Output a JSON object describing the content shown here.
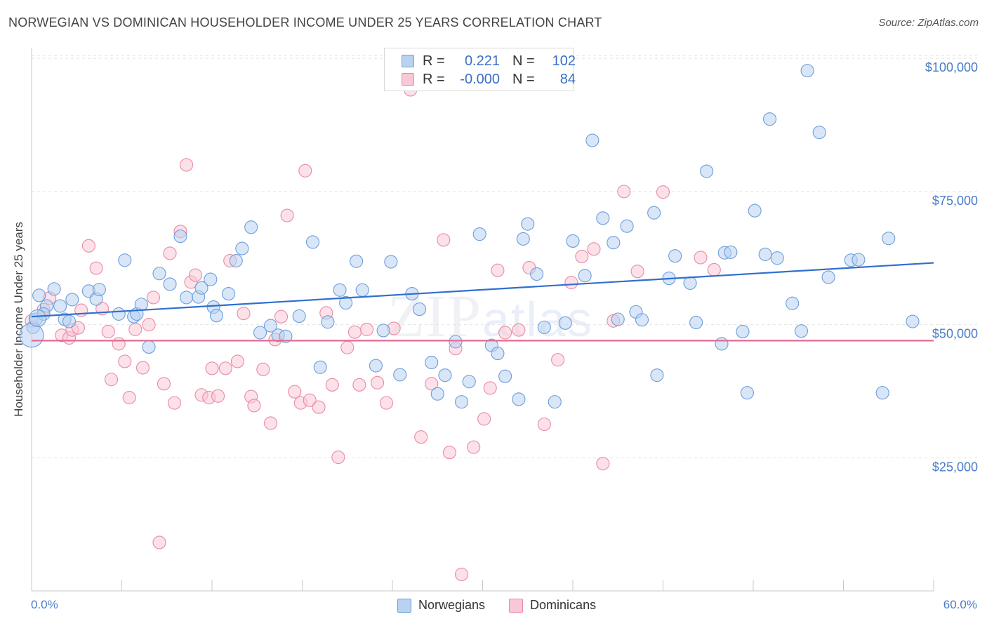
{
  "title": "NORWEGIAN VS DOMINICAN HOUSEHOLDER INCOME UNDER 25 YEARS CORRELATION CHART",
  "source": "Source: ZipAtlas.com",
  "watermark": {
    "zip": "ZIP",
    "atlas": "atlas"
  },
  "legend": {
    "rows": [
      {
        "r_label": "R =",
        "r_value": "0.221",
        "n_label": "N =",
        "n_value": "102"
      },
      {
        "r_label": "R =",
        "r_value": "-0.000",
        "n_label": "N =",
        "n_value": "84"
      }
    ]
  },
  "bottom_legend": [
    "Norwegians",
    "Dominicans"
  ],
  "x_axis": {
    "min_label": "0.0%",
    "max_label": "60.0%"
  },
  "chart_data": {
    "type": "scatter",
    "title": "NORWEGIAN VS DOMINICAN HOUSEHOLDER INCOME UNDER 25 YEARS CORRELATION CHART",
    "xlabel": "",
    "ylabel": "Householder Income Under 25 years",
    "xlim": [
      0,
      60
    ],
    "ylim": [
      0,
      102000
    ],
    "y_ticks": [
      {
        "value": 25000,
        "label": "$25,000"
      },
      {
        "value": 50000,
        "label": "$50,000"
      },
      {
        "value": 75000,
        "label": "$75,000"
      },
      {
        "value": 100000,
        "label": "$100,000"
      }
    ],
    "grid": true,
    "legend_position": "top-center",
    "colors": {
      "norwegians": "#6d9edb",
      "dominicans": "#e98aa6",
      "norwegians_line": "#2f6fcf",
      "dominicans_line": "#e26a92"
    },
    "series": [
      {
        "name": "Norwegians",
        "trend": {
          "x": [
            0,
            60
          ],
          "y": [
            51500,
            61600
          ]
        },
        "points": [
          [
            0.1,
            49500
          ],
          [
            0.3,
            51000
          ],
          [
            1.0,
            53500
          ],
          [
            1.5,
            56700
          ],
          [
            1.9,
            53500
          ],
          [
            2.2,
            51000
          ],
          [
            2.7,
            54700
          ],
          [
            3.8,
            56300
          ],
          [
            4.3,
            54800
          ],
          [
            4.5,
            56600
          ],
          [
            6.2,
            62100
          ],
          [
            6.8,
            51500
          ],
          [
            7.0,
            52000
          ],
          [
            7.3,
            53800
          ],
          [
            7.8,
            45800
          ],
          [
            8.5,
            59600
          ],
          [
            9.2,
            57600
          ],
          [
            9.9,
            66600
          ],
          [
            10.3,
            55100
          ],
          [
            11.1,
            55200
          ],
          [
            11.3,
            56900
          ],
          [
            11.9,
            58500
          ],
          [
            12.1,
            53300
          ],
          [
            12.3,
            51700
          ],
          [
            13.1,
            55800
          ],
          [
            13.6,
            62000
          ],
          [
            14.0,
            64300
          ],
          [
            14.6,
            68300
          ],
          [
            15.2,
            48500
          ],
          [
            15.9,
            49800
          ],
          [
            16.4,
            48000
          ],
          [
            16.9,
            47800
          ],
          [
            17.8,
            51600
          ],
          [
            18.7,
            65500
          ],
          [
            19.2,
            42000
          ],
          [
            19.7,
            50500
          ],
          [
            20.5,
            56500
          ],
          [
            20.9,
            54100
          ],
          [
            21.6,
            61900
          ],
          [
            22.0,
            56500
          ],
          [
            22.9,
            42300
          ],
          [
            23.4,
            48900
          ],
          [
            23.9,
            61800
          ],
          [
            24.5,
            40600
          ],
          [
            25.3,
            55800
          ],
          [
            25.8,
            52900
          ],
          [
            26.6,
            42900
          ],
          [
            27.0,
            37000
          ],
          [
            27.5,
            40500
          ],
          [
            28.2,
            46800
          ],
          [
            28.6,
            35500
          ],
          [
            29.1,
            39300
          ],
          [
            29.8,
            67000
          ],
          [
            30.6,
            46100
          ],
          [
            31.0,
            44600
          ],
          [
            31.5,
            40300
          ],
          [
            32.4,
            36000
          ],
          [
            32.7,
            66100
          ],
          [
            33.0,
            68900
          ],
          [
            33.6,
            59500
          ],
          [
            34.1,
            49500
          ],
          [
            34.8,
            35500
          ],
          [
            35.5,
            50300
          ],
          [
            36.0,
            65700
          ],
          [
            36.8,
            59200
          ],
          [
            37.3,
            84600
          ],
          [
            38.0,
            70000
          ],
          [
            38.7,
            65400
          ],
          [
            39.0,
            51000
          ],
          [
            39.6,
            68500
          ],
          [
            40.2,
            52400
          ],
          [
            40.6,
            50900
          ],
          [
            41.4,
            71000
          ],
          [
            41.6,
            40500
          ],
          [
            42.4,
            58700
          ],
          [
            42.8,
            62900
          ],
          [
            43.8,
            57800
          ],
          [
            44.2,
            50400
          ],
          [
            44.9,
            78800
          ],
          [
            45.9,
            46400
          ],
          [
            46.1,
            63500
          ],
          [
            46.5,
            63600
          ],
          [
            47.3,
            48700
          ],
          [
            47.6,
            37200
          ],
          [
            48.1,
            71400
          ],
          [
            48.8,
            63200
          ],
          [
            49.1,
            88600
          ],
          [
            49.6,
            62500
          ],
          [
            50.6,
            54000
          ],
          [
            51.2,
            48800
          ],
          [
            51.6,
            97700
          ],
          [
            52.4,
            86100
          ],
          [
            53.0,
            58900
          ],
          [
            54.5,
            62100
          ],
          [
            55.0,
            62200
          ],
          [
            56.6,
            37200
          ],
          [
            57.0,
            66200
          ],
          [
            58.6,
            50600
          ],
          [
            0.5,
            55500
          ],
          [
            0.8,
            52000
          ],
          [
            2.5,
            50600
          ],
          [
            5.8,
            52000
          ]
        ]
      },
      {
        "name": "Dominicans",
        "trend": {
          "x": [
            0,
            60
          ],
          "y": [
            47000,
            47000
          ]
        },
        "points": [
          [
            0.0,
            50700
          ],
          [
            0.8,
            52800
          ],
          [
            1.2,
            55000
          ],
          [
            2.0,
            48000
          ],
          [
            2.5,
            47500
          ],
          [
            2.7,
            49000
          ],
          [
            3.1,
            49400
          ],
          [
            3.3,
            52700
          ],
          [
            3.8,
            64800
          ],
          [
            4.3,
            60600
          ],
          [
            4.7,
            53000
          ],
          [
            5.1,
            48700
          ],
          [
            5.3,
            39700
          ],
          [
            5.8,
            46400
          ],
          [
            6.2,
            43100
          ],
          [
            6.5,
            36300
          ],
          [
            6.9,
            49100
          ],
          [
            7.4,
            41900
          ],
          [
            7.8,
            50000
          ],
          [
            8.1,
            55100
          ],
          [
            8.5,
            9100
          ],
          [
            8.8,
            38900
          ],
          [
            9.2,
            63400
          ],
          [
            9.5,
            35300
          ],
          [
            9.9,
            67500
          ],
          [
            10.3,
            80000
          ],
          [
            10.6,
            58000
          ],
          [
            10.9,
            59300
          ],
          [
            11.3,
            36800
          ],
          [
            11.8,
            36300
          ],
          [
            12.0,
            41800
          ],
          [
            12.4,
            36600
          ],
          [
            12.9,
            41800
          ],
          [
            13.2,
            62000
          ],
          [
            13.7,
            43100
          ],
          [
            14.1,
            52100
          ],
          [
            14.6,
            36500
          ],
          [
            14.8,
            34800
          ],
          [
            15.4,
            41600
          ],
          [
            15.9,
            31500
          ],
          [
            16.2,
            47200
          ],
          [
            16.6,
            51500
          ],
          [
            17.0,
            70500
          ],
          [
            17.5,
            37400
          ],
          [
            17.9,
            35300
          ],
          [
            18.2,
            78900
          ],
          [
            18.5,
            35800
          ],
          [
            19.1,
            34500
          ],
          [
            19.6,
            52200
          ],
          [
            20.0,
            38700
          ],
          [
            20.4,
            25100
          ],
          [
            21.0,
            45700
          ],
          [
            21.5,
            48600
          ],
          [
            21.8,
            38700
          ],
          [
            22.3,
            49100
          ],
          [
            23.0,
            39100
          ],
          [
            23.6,
            35300
          ],
          [
            24.1,
            49300
          ],
          [
            25.2,
            94100
          ],
          [
            25.9,
            28900
          ],
          [
            26.6,
            38900
          ],
          [
            27.4,
            65900
          ],
          [
            27.8,
            26000
          ],
          [
            28.2,
            45500
          ],
          [
            28.6,
            3100
          ],
          [
            29.4,
            27000
          ],
          [
            30.1,
            32300
          ],
          [
            30.5,
            38100
          ],
          [
            31.0,
            60200
          ],
          [
            31.5,
            48500
          ],
          [
            32.4,
            49000
          ],
          [
            33.1,
            60700
          ],
          [
            34.1,
            31300
          ],
          [
            35.0,
            43400
          ],
          [
            35.9,
            57900
          ],
          [
            36.6,
            62800
          ],
          [
            37.4,
            64200
          ],
          [
            38.0,
            23900
          ],
          [
            38.7,
            50700
          ],
          [
            39.4,
            75000
          ],
          [
            40.3,
            60000
          ],
          [
            42.0,
            74900
          ],
          [
            44.5,
            62600
          ],
          [
            45.4,
            60300
          ]
        ]
      }
    ]
  }
}
